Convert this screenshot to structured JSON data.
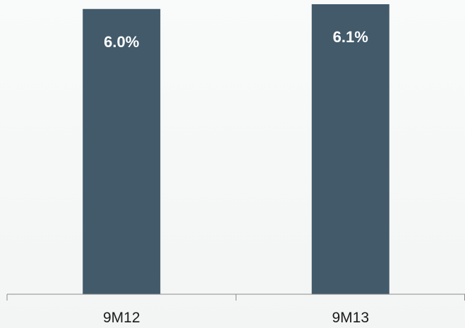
{
  "chart_data": {
    "type": "bar",
    "categories": [
      "9M12",
      "9M13"
    ],
    "values": [
      6.0,
      6.1
    ],
    "data_labels": [
      "6.0%",
      "6.1%"
    ],
    "title": "",
    "xlabel": "",
    "ylabel": "",
    "ylim": [
      0,
      6.1
    ],
    "grid": false,
    "legend": "none",
    "bar_color": "#425a6a",
    "axis_color": "#8c8c8c"
  }
}
